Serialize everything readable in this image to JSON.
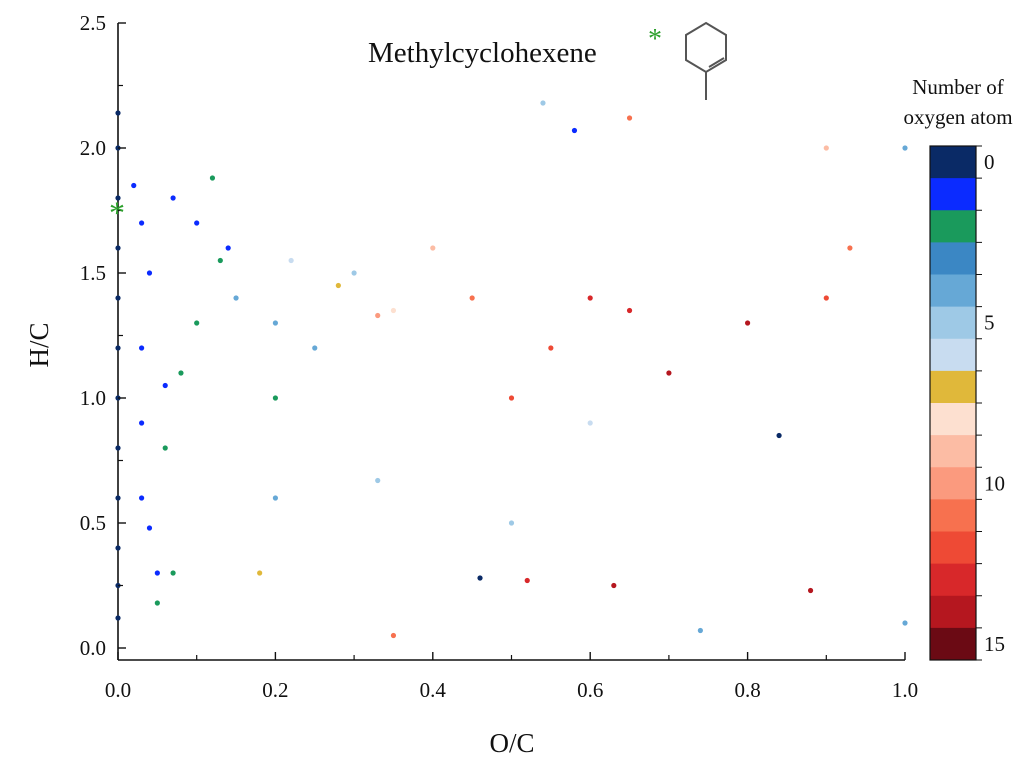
{
  "chart_data": {
    "type": "scatter",
    "title": "Methylcyclohexene",
    "title_marker": "*",
    "xlabel": "O/C",
    "ylabel": "H/C",
    "xlim": [
      0,
      1.0
    ],
    "ylim": [
      0,
      2.5
    ],
    "x_ticks": [
      "0.0",
      "0.2",
      "0.4",
      "0.6",
      "0.8",
      "1.0"
    ],
    "x_tick_values": [
      0,
      0.2,
      0.4,
      0.6,
      0.8,
      1.0
    ],
    "y_ticks": [
      "0.0",
      "0.5",
      "1.0",
      "1.5",
      "2.0",
      "2.5"
    ],
    "y_tick_values": [
      0,
      0.5,
      1.0,
      1.5,
      2.0,
      2.5
    ],
    "grid": false,
    "precursor_point": {
      "x": 0.0,
      "y": 1.77,
      "marker": "*",
      "color": "#2ca02c"
    },
    "colorbar": {
      "title_line1": "Number of",
      "title_line2": "oxygen atom",
      "range": [
        0,
        15
      ],
      "tick_labels": [
        "0",
        "5",
        "10",
        "15"
      ],
      "tick_values": [
        0,
        5,
        10,
        15
      ],
      "colors": [
        "#0a2a66",
        "#0b2bff",
        "#1a9a5c",
        "#3b87c4",
        "#66a8d6",
        "#9ec9e6",
        "#c8dcf0",
        "#e0b83a",
        "#fde0d0",
        "#fcbca4",
        "#fb9a7e",
        "#f7714f",
        "#ee4a35",
        "#d8282a",
        "#b5171f",
        "#6b0a14"
      ]
    },
    "series_note": "Scatter of molecular formulas CcHhOo: x = O/C, y = H/C, color = number of oxygen atoms (0-15)",
    "points": [
      {
        "x": 0.0,
        "y": 2.14,
        "o": 0
      },
      {
        "x": 0.0,
        "y": 2.0,
        "o": 0
      },
      {
        "x": 0.0,
        "y": 1.8,
        "o": 0
      },
      {
        "x": 0.0,
        "y": 1.6,
        "o": 0
      },
      {
        "x": 0.0,
        "y": 1.4,
        "o": 0
      },
      {
        "x": 0.0,
        "y": 1.2,
        "o": 0
      },
      {
        "x": 0.0,
        "y": 1.0,
        "o": 0
      },
      {
        "x": 0.0,
        "y": 0.8,
        "o": 0
      },
      {
        "x": 0.0,
        "y": 0.6,
        "o": 0
      },
      {
        "x": 0.0,
        "y": 0.4,
        "o": 0
      },
      {
        "x": 0.0,
        "y": 0.25,
        "o": 0
      },
      {
        "x": 0.0,
        "y": 0.12,
        "o": 0
      },
      {
        "x": 0.02,
        "y": 1.85,
        "o": 1
      },
      {
        "x": 0.03,
        "y": 1.7,
        "o": 1
      },
      {
        "x": 0.04,
        "y": 1.5,
        "o": 1
      },
      {
        "x": 0.03,
        "y": 1.2,
        "o": 1
      },
      {
        "x": 0.03,
        "y": 0.9,
        "o": 1
      },
      {
        "x": 0.03,
        "y": 0.6,
        "o": 1
      },
      {
        "x": 0.04,
        "y": 0.48,
        "o": 1
      },
      {
        "x": 0.05,
        "y": 0.3,
        "o": 1
      },
      {
        "x": 0.07,
        "y": 1.8,
        "o": 1
      },
      {
        "x": 0.1,
        "y": 1.7,
        "o": 1
      },
      {
        "x": 0.14,
        "y": 1.6,
        "o": 1
      },
      {
        "x": 0.06,
        "y": 1.05,
        "o": 1
      },
      {
        "x": 0.05,
        "y": 0.18,
        "o": 2
      },
      {
        "x": 0.07,
        "y": 0.3,
        "o": 2
      },
      {
        "x": 0.06,
        "y": 0.8,
        "o": 2
      },
      {
        "x": 0.1,
        "y": 1.3,
        "o": 2
      },
      {
        "x": 0.13,
        "y": 1.55,
        "o": 2
      },
      {
        "x": 0.12,
        "y": 1.88,
        "o": 2
      },
      {
        "x": 0.08,
        "y": 1.1,
        "o": 2
      },
      {
        "x": 0.2,
        "y": 1.0,
        "o": 2
      },
      {
        "x": 0.15,
        "y": 1.4,
        "o": 4
      },
      {
        "x": 0.2,
        "y": 1.3,
        "o": 4
      },
      {
        "x": 0.25,
        "y": 1.2,
        "o": 4
      },
      {
        "x": 0.3,
        "y": 1.5,
        "o": 5
      },
      {
        "x": 0.2,
        "y": 0.6,
        "o": 4
      },
      {
        "x": 0.33,
        "y": 0.67,
        "o": 5
      },
      {
        "x": 0.5,
        "y": 0.5,
        "o": 5
      },
      {
        "x": 0.6,
        "y": 0.9,
        "o": 6
      },
      {
        "x": 0.22,
        "y": 1.55,
        "o": 6
      },
      {
        "x": 0.28,
        "y": 1.45,
        "o": 7
      },
      {
        "x": 0.35,
        "y": 1.35,
        "o": 8
      },
      {
        "x": 0.4,
        "y": 1.6,
        "o": 9
      },
      {
        "x": 0.33,
        "y": 1.33,
        "o": 10
      },
      {
        "x": 0.45,
        "y": 1.4,
        "o": 11
      },
      {
        "x": 0.5,
        "y": 1.0,
        "o": 12
      },
      {
        "x": 0.55,
        "y": 1.2,
        "o": 12
      },
      {
        "x": 0.6,
        "y": 1.4,
        "o": 13
      },
      {
        "x": 0.65,
        "y": 1.35,
        "o": 13
      },
      {
        "x": 0.7,
        "y": 1.1,
        "o": 14
      },
      {
        "x": 0.8,
        "y": 1.3,
        "o": 14
      },
      {
        "x": 0.9,
        "y": 1.4,
        "o": 12
      },
      {
        "x": 0.93,
        "y": 1.6,
        "o": 11
      },
      {
        "x": 0.84,
        "y": 0.85,
        "o": 0
      },
      {
        "x": 0.88,
        "y": 0.23,
        "o": 14
      },
      {
        "x": 0.63,
        "y": 0.25,
        "o": 14
      },
      {
        "x": 0.35,
        "y": 0.05,
        "o": 11
      },
      {
        "x": 0.52,
        "y": 0.27,
        "o": 13
      },
      {
        "x": 0.46,
        "y": 0.28,
        "o": 0
      },
      {
        "x": 0.58,
        "y": 2.07,
        "o": 1
      },
      {
        "x": 0.65,
        "y": 2.12,
        "o": 11
      },
      {
        "x": 0.54,
        "y": 2.18,
        "o": 5
      },
      {
        "x": 0.9,
        "y": 2.0,
        "o": 9
      },
      {
        "x": 1.0,
        "y": 2.0,
        "o": 4
      },
      {
        "x": 1.0,
        "y": 0.1,
        "o": 4
      },
      {
        "x": 0.74,
        "y": 0.07,
        "o": 4
      },
      {
        "x": 0.18,
        "y": 0.3,
        "o": 7
      }
    ]
  }
}
